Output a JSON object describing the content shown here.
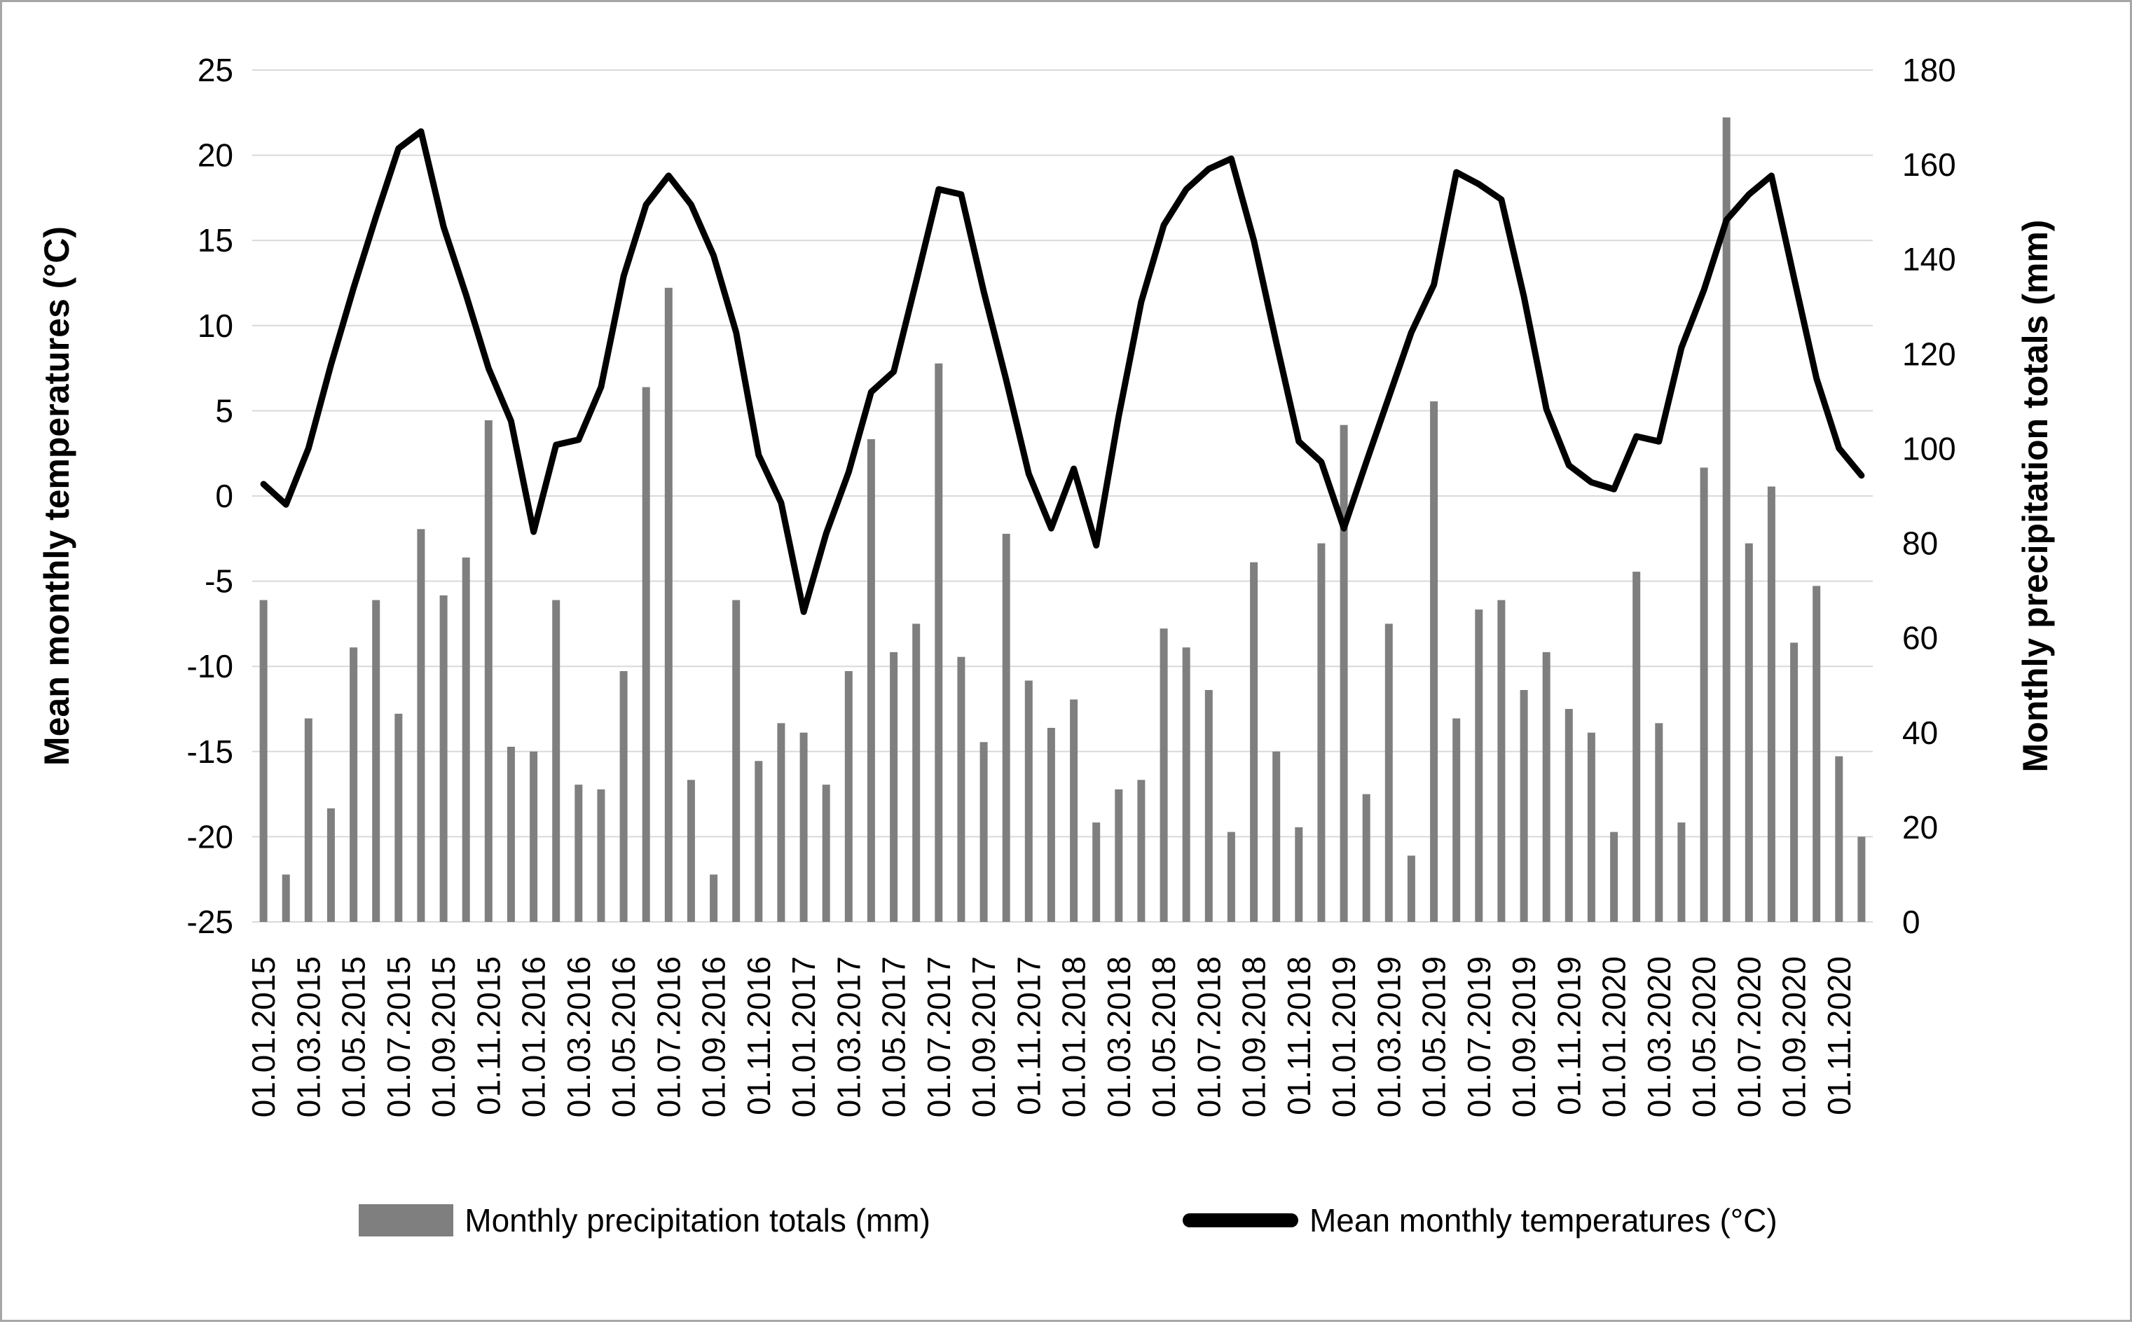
{
  "figure": {
    "background": "#ffffff",
    "border_color": "#a6a6a6"
  },
  "chart_data": {
    "type": "combo-bar-line",
    "grid": "horizontal",
    "grid_color": "#d9d9d9",
    "x_label_count": 72,
    "x_tick_every": 2,
    "x_labels": [
      "01.01.2015",
      "01.03.2015",
      "01.05.2015",
      "01.07.2015",
      "01.09.2015",
      "01.11.2015",
      "01.01.2016",
      "01.03.2016",
      "01.05.2016",
      "01.07.2016",
      "01.09.2016",
      "01.11.2016",
      "01.01.2017",
      "01.03.2017",
      "01.05.2017",
      "01.07.2017",
      "01.09.2017",
      "01.11.2017",
      "01.01.2018",
      "01.03.2018",
      "01.05.2018",
      "01.07.2018",
      "01.09.2018",
      "01.11.2018",
      "01.01.2019",
      "01.03.2019",
      "01.05.2019",
      "01.07.2019",
      "01.09.2019",
      "01.11.2019",
      "01.01.2020",
      "01.03.2020",
      "01.05.2020",
      "01.07.2020",
      "01.09.2020",
      "01.11.2020"
    ],
    "left_axis": {
      "title": "Mean monthly temperatures (°C)",
      "min": -25,
      "max": 25,
      "step": 5,
      "ticks": [
        25,
        20,
        15,
        10,
        5,
        0,
        -5,
        -10,
        -15,
        -20,
        -25
      ]
    },
    "right_axis": {
      "title": "Monthly precipitation totals (mm)",
      "min": 0,
      "max": 180,
      "step": 20,
      "ticks": [
        180,
        160,
        140,
        120,
        100,
        80,
        60,
        40,
        20,
        0
      ]
    },
    "series": [
      {
        "name": "Monthly precipitation totals (mm)",
        "type": "bar",
        "axis": "right",
        "color": "#7f7f7f",
        "values": [
          68,
          10,
          43,
          24,
          58,
          68,
          44,
          83,
          69,
          77,
          106,
          37,
          36,
          68,
          29,
          28,
          53,
          113,
          134,
          30,
          10,
          68,
          34,
          42,
          40,
          29,
          53,
          102,
          57,
          63,
          118,
          56,
          38,
          82,
          51,
          41,
          47,
          21,
          28,
          30,
          62,
          58,
          49,
          19,
          76,
          36,
          20,
          80,
          105,
          27,
          63,
          14,
          110,
          43,
          66,
          68,
          49,
          57,
          45,
          40,
          19,
          74,
          42,
          21,
          96,
          170,
          80,
          92,
          59,
          71,
          35,
          18
        ]
      },
      {
        "name": "Mean monthly temperatures (°C)",
        "type": "line",
        "axis": "left",
        "color": "#000000",
        "values": [
          0.7,
          -0.5,
          2.8,
          7.7,
          12.2,
          16.4,
          20.4,
          21.4,
          15.8,
          11.8,
          7.5,
          4.4,
          -2.1,
          3.0,
          3.3,
          6.4,
          12.9,
          17.1,
          18.8,
          17.1,
          14.1,
          9.6,
          2.4,
          -0.4,
          -6.8,
          -2.2,
          1.4,
          6.1,
          7.3,
          12.6,
          18.0,
          17.7,
          12.0,
          6.8,
          1.3,
          -1.9,
          1.6,
          -2.9,
          4.7,
          11.4,
          15.9,
          18.0,
          19.2,
          19.8,
          15.0,
          9.0,
          3.2,
          2.0,
          -1.9,
          2.0,
          5.8,
          9.6,
          12.4,
          19.0,
          18.3,
          17.4,
          11.7,
          5.1,
          1.8,
          0.8,
          0.4,
          3.5,
          3.2,
          8.7,
          12.1,
          16.2,
          17.7,
          18.8,
          12.8,
          6.9,
          2.8,
          1.2
        ]
      }
    ],
    "legend": {
      "items": [
        {
          "label": "Monthly precipitation totals (mm)",
          "swatch": "bar",
          "color": "#7f7f7f"
        },
        {
          "label": "Mean monthly temperatures (°C)",
          "swatch": "line",
          "color": "#000000"
        }
      ]
    }
  }
}
